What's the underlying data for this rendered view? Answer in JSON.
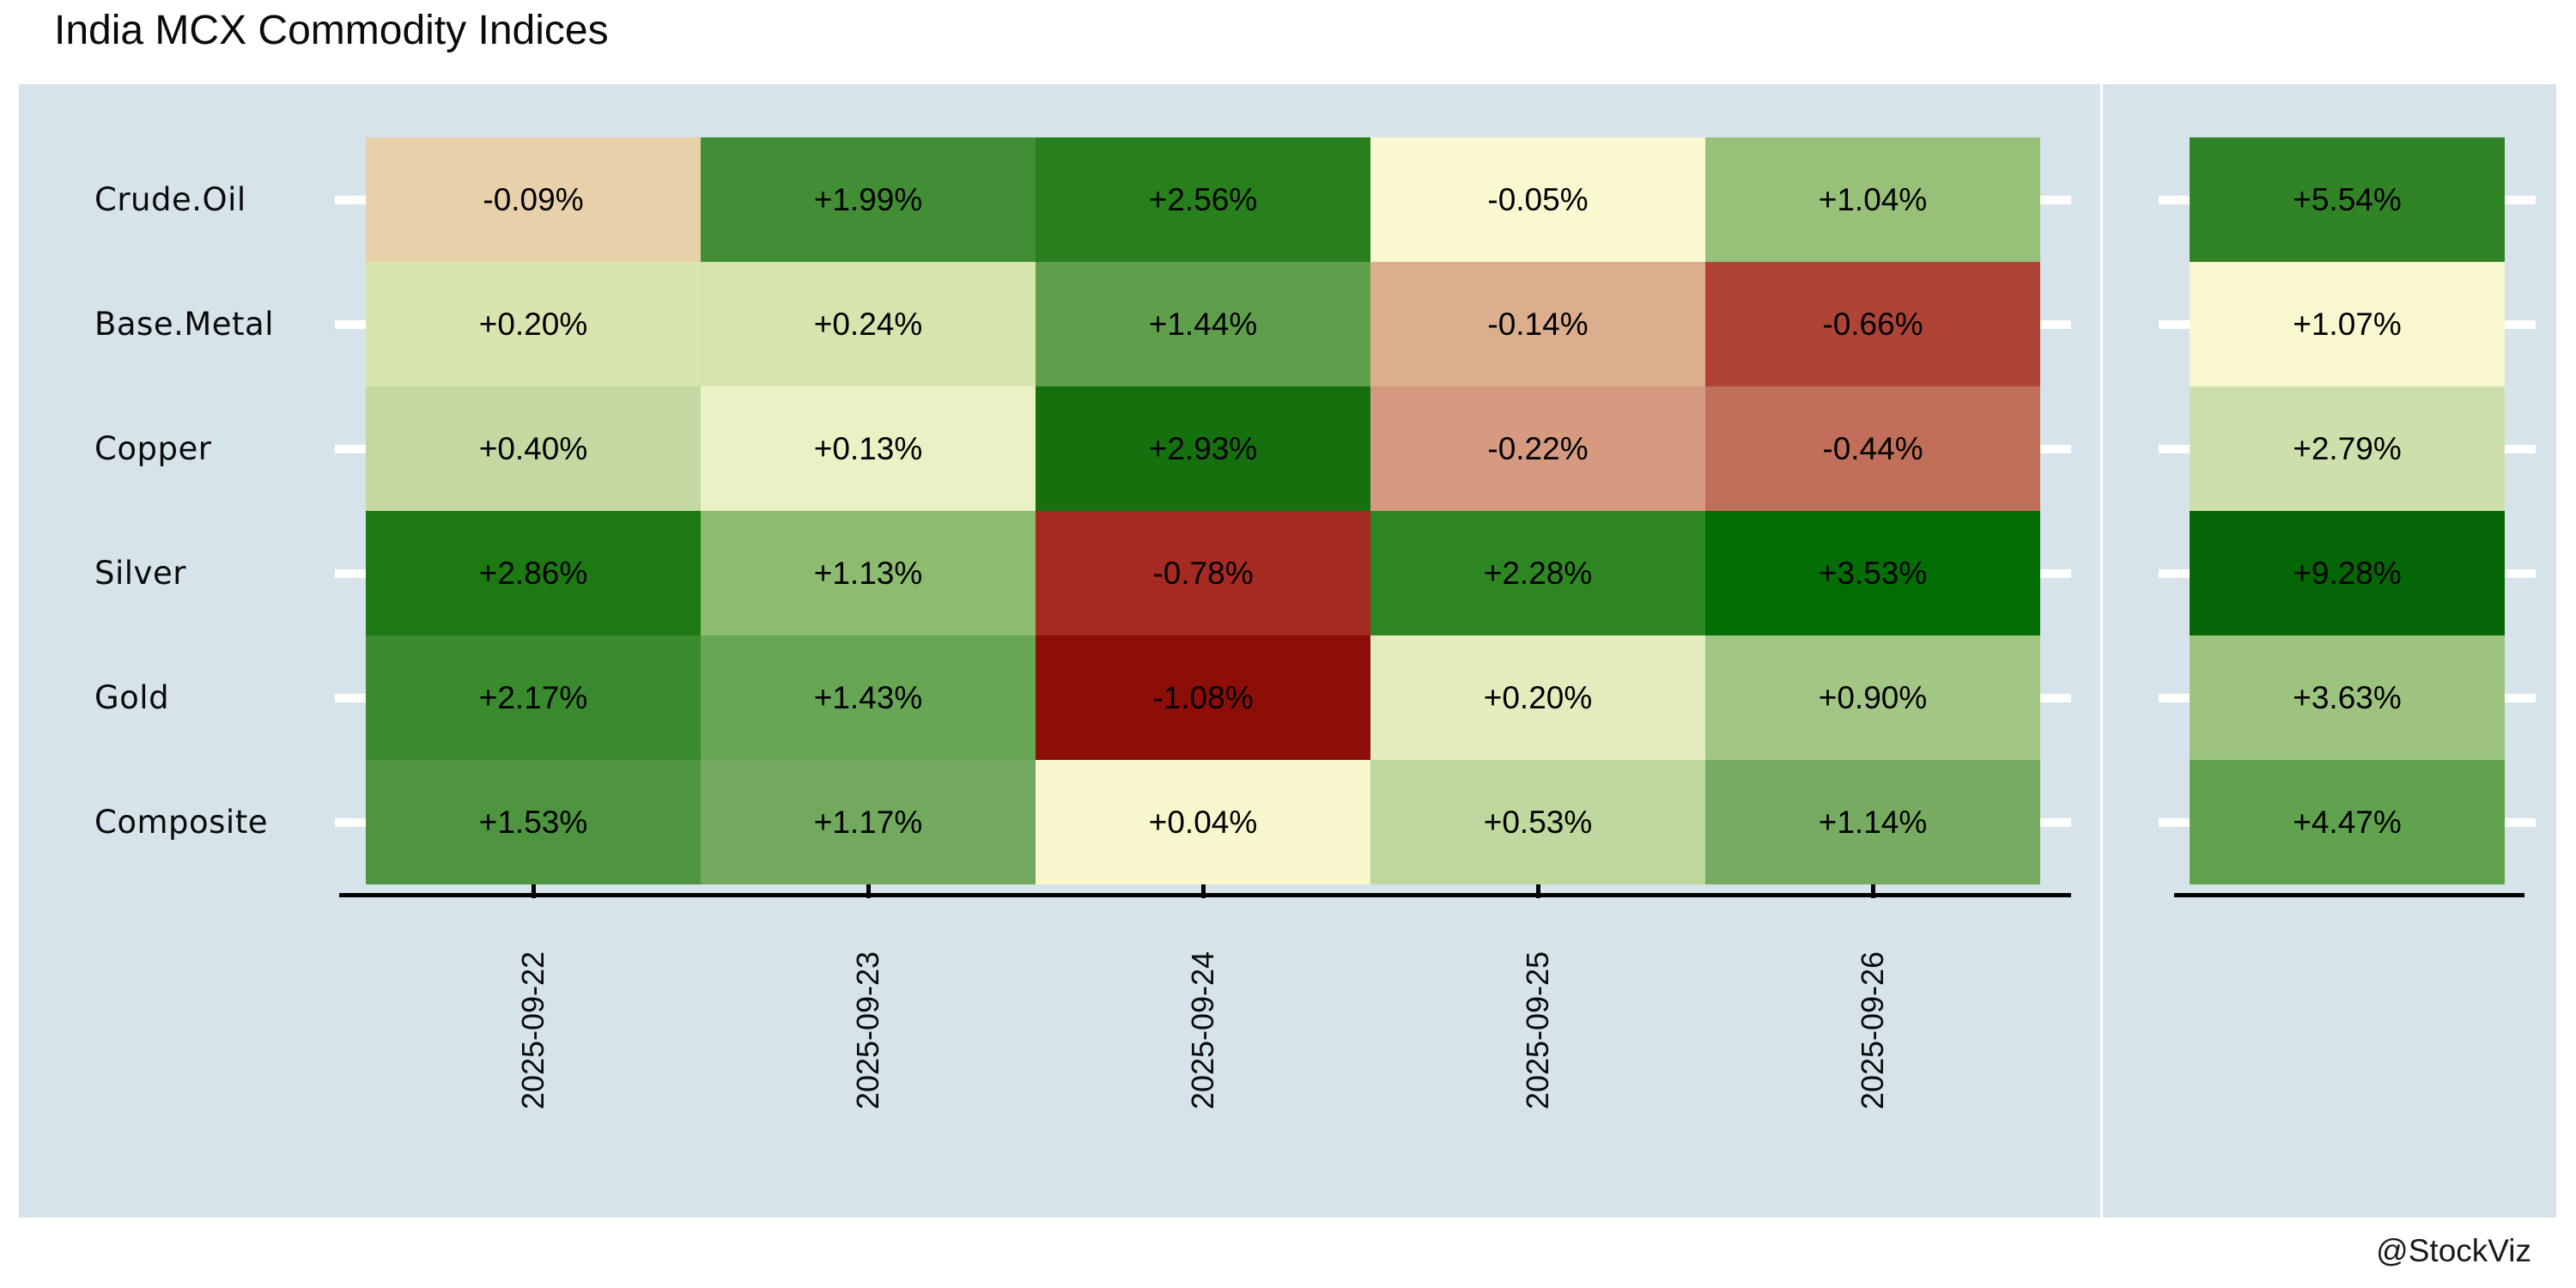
{
  "title": "India MCX Commodity Indices",
  "attribution": "@StockViz",
  "colors": {
    "panel_bg": "#d6e3eb",
    "axis": "#000000",
    "row_tick": "#ffffff",
    "cell_text": "#000000",
    "background": "#ffffff"
  },
  "chart_data": {
    "type": "heatmap",
    "title": "India MCX Commodity Indices",
    "colormap": "RdYlGn",
    "legend": "none",
    "x_labels": [
      "2025-09-22",
      "2025-09-23",
      "2025-09-24",
      "2025-09-25",
      "2025-09-26"
    ],
    "y_labels": [
      "Crude.Oil",
      "Base.Metal",
      "Copper",
      "Silver",
      "Gold",
      "Composite"
    ],
    "values_pct": [
      [
        -0.09,
        1.99,
        2.56,
        -0.05,
        1.04
      ],
      [
        0.2,
        0.24,
        1.44,
        -0.14,
        -0.66
      ],
      [
        0.4,
        0.13,
        2.93,
        -0.22,
        -0.44
      ],
      [
        2.86,
        1.13,
        -0.78,
        2.28,
        3.53
      ],
      [
        2.17,
        1.43,
        -1.08,
        0.2,
        0.9
      ],
      [
        1.53,
        1.17,
        0.04,
        0.53,
        1.14
      ]
    ],
    "display": [
      [
        "-0.09%",
        "+1.99%",
        "+2.56%",
        "-0.05%",
        "+1.04%"
      ],
      [
        "+0.20%",
        "+0.24%",
        "+1.44%",
        "-0.14%",
        "-0.66%"
      ],
      [
        "+0.40%",
        "+0.13%",
        "+2.93%",
        "-0.22%",
        "-0.44%"
      ],
      [
        "+2.86%",
        "+1.13%",
        "-0.78%",
        "+2.28%",
        "+3.53%"
      ],
      [
        "+2.17%",
        "+1.43%",
        "-1.08%",
        "+0.20%",
        "+0.90%"
      ],
      [
        "+1.53%",
        "+1.17%",
        "+0.04%",
        "+0.53%",
        "+1.14%"
      ]
    ],
    "cell_colors": [
      [
        "#e8d0aa",
        "#418e35",
        "#27801b",
        "#faf8d1",
        "#97c178"
      ],
      [
        "#d8e5b0",
        "#d6e4ae",
        "#5f9f4c",
        "#dcae8e",
        "#ae4336"
      ],
      [
        "#c3d9a1",
        "#eaf1c5",
        "#15710e",
        "#d69a81",
        "#c16f58"
      ],
      [
        "#1d7a13",
        "#8dbc71",
        "#a52a21",
        "#2e8723",
        "#036d06"
      ],
      [
        "#398b2d",
        "#67a655",
        "#8d0d07",
        "#e3ecbc",
        "#a2c684"
      ],
      [
        "#4f9440",
        "#73a95e",
        "#f8f6cd",
        "#bfd89d",
        "#76ab61"
      ]
    ],
    "row_totals": {
      "values_pct": [
        5.54,
        1.07,
        2.79,
        9.28,
        3.63,
        4.47
      ],
      "display": [
        "+5.54%",
        "+1.07%",
        "+2.79%",
        "+9.28%",
        "+3.63%",
        "+4.47%"
      ],
      "colors": [
        "#318426",
        "#f9f7d0",
        "#cde0ac",
        "#046605",
        "#9cc47e",
        "#60a24d"
      ]
    }
  }
}
